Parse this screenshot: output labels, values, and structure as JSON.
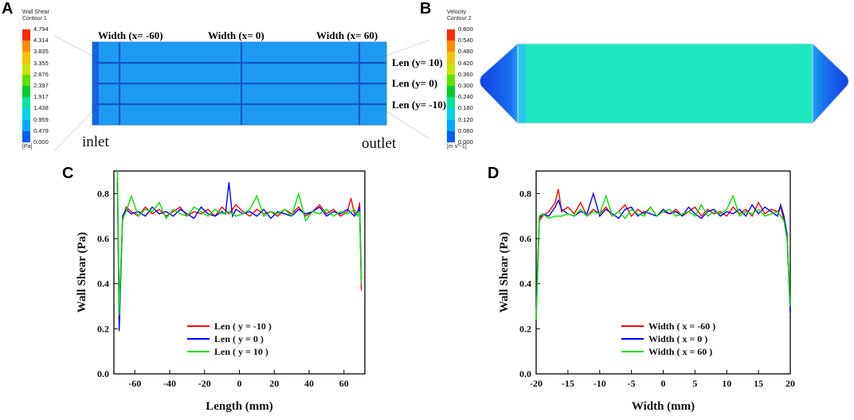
{
  "panels": {
    "A": "A",
    "B": "B",
    "C": "C",
    "D": "D"
  },
  "panel_a": {
    "legend_title": [
      "Wall Shear",
      "Contour 1"
    ],
    "legend_values": [
      "4.794",
      "4.314",
      "3.835",
      "3.355",
      "2.876",
      "2.397",
      "1.917",
      "1.438",
      "0.959",
      "0.479",
      "0.000"
    ],
    "legend_unit": "[Pa]",
    "width_labels": [
      "Width (x= -60)",
      "Width (x= 0)",
      "Width (x= 60)"
    ],
    "len_labels": [
      "Len (y= 10)",
      "Len (y= 0)",
      "Len (y= -10)"
    ],
    "inlet": "inlet",
    "outlet": "outlet"
  },
  "panel_b": {
    "legend_title": [
      "Velocity",
      "Contour 2"
    ],
    "legend_values": [
      "0.600",
      "0.540",
      "0.480",
      "0.420",
      "0.360",
      "0.300",
      "0.240",
      "0.180",
      "0.120",
      "0.060",
      "0.000"
    ],
    "legend_unit": "[m s^-1]"
  },
  "colors": {
    "legend": [
      "#ff2a00",
      "#ff8c00",
      "#f5c400",
      "#c8e600",
      "#5ce000",
      "#00cc2a",
      "#00e6a0",
      "#00d4e6",
      "#00a6ff",
      "#0060f0",
      "#0020c8"
    ],
    "channel_fill": "#1e9bf0",
    "channel_line": "#1555c8",
    "velocity_fill": "#1de8c0",
    "series_red": "#ff0000",
    "series_blue": "#0000ff",
    "series_green": "#00e000"
  },
  "chart_data": [
    {
      "type": "line",
      "title": "",
      "xlabel": "Length (mm)",
      "ylabel": "Wall Shear (Pa)",
      "xlim": [
        -72,
        72
      ],
      "ylim": [
        0,
        0.9
      ],
      "xticks": [
        -60,
        -40,
        -20,
        0,
        20,
        40,
        60
      ],
      "yticks": [
        0.0,
        0.2,
        0.4,
        0.6,
        0.8
      ],
      "legend_position": "bottom-center",
      "series": [
        {
          "name": "Len ( y = -10 )",
          "color": "red",
          "x": [
            -70,
            -69,
            -67,
            -65,
            -62,
            -58,
            -54,
            -50,
            -46,
            -42,
            -38,
            -34,
            -30,
            -26,
            -22,
            -18,
            -14,
            -10,
            -6,
            -2,
            2,
            6,
            10,
            14,
            18,
            22,
            26,
            30,
            34,
            38,
            42,
            46,
            50,
            54,
            58,
            62,
            64,
            66,
            68,
            69,
            70
          ],
          "y": [
            0.87,
            0.3,
            0.68,
            0.74,
            0.72,
            0.7,
            0.74,
            0.71,
            0.73,
            0.7,
            0.72,
            0.74,
            0.7,
            0.72,
            0.71,
            0.73,
            0.7,
            0.74,
            0.71,
            0.75,
            0.72,
            0.7,
            0.73,
            0.71,
            0.72,
            0.7,
            0.73,
            0.71,
            0.74,
            0.7,
            0.72,
            0.75,
            0.71,
            0.73,
            0.7,
            0.72,
            0.78,
            0.71,
            0.72,
            0.76,
            0.37
          ]
        },
        {
          "name": "Len ( y = 0 )",
          "color": "blue",
          "x": [
            -70,
            -69,
            -67,
            -65,
            -62,
            -58,
            -54,
            -50,
            -46,
            -42,
            -38,
            -34,
            -30,
            -26,
            -22,
            -18,
            -14,
            -10,
            -8,
            -6,
            -4,
            -2,
            2,
            6,
            10,
            14,
            18,
            22,
            26,
            30,
            34,
            38,
            42,
            46,
            50,
            54,
            58,
            62,
            66,
            68,
            69,
            70
          ],
          "y": [
            0.85,
            0.19,
            0.7,
            0.73,
            0.71,
            0.72,
            0.7,
            0.74,
            0.71,
            0.72,
            0.7,
            0.73,
            0.71,
            0.69,
            0.74,
            0.71,
            0.7,
            0.72,
            0.71,
            0.85,
            0.7,
            0.73,
            0.71,
            0.72,
            0.7,
            0.73,
            0.69,
            0.72,
            0.71,
            0.7,
            0.73,
            0.71,
            0.72,
            0.74,
            0.7,
            0.72,
            0.71,
            0.73,
            0.7,
            0.72,
            0.74,
            0.42
          ]
        },
        {
          "name": "Len ( y = 10 )",
          "color": "green",
          "x": [
            -70,
            -69,
            -67,
            -65,
            -62,
            -58,
            -54,
            -50,
            -46,
            -42,
            -38,
            -34,
            -30,
            -26,
            -22,
            -18,
            -14,
            -10,
            -6,
            -2,
            2,
            6,
            10,
            14,
            18,
            22,
            26,
            30,
            34,
            38,
            42,
            46,
            50,
            54,
            58,
            62,
            66,
            68,
            69,
            70
          ],
          "y": [
            0.9,
            0.26,
            0.69,
            0.72,
            0.79,
            0.7,
            0.73,
            0.72,
            0.76,
            0.69,
            0.73,
            0.71,
            0.7,
            0.74,
            0.72,
            0.7,
            0.73,
            0.71,
            0.72,
            0.7,
            0.71,
            0.73,
            0.79,
            0.7,
            0.72,
            0.71,
            0.73,
            0.7,
            0.8,
            0.68,
            0.72,
            0.71,
            0.73,
            0.7,
            0.72,
            0.71,
            0.73,
            0.7,
            0.72,
            0.4
          ]
        }
      ]
    },
    {
      "type": "line",
      "title": "",
      "xlabel": "Width (mm)",
      "ylabel": "Wall Shear (Pa)",
      "xlim": [
        -20,
        20
      ],
      "ylim": [
        0,
        0.9
      ],
      "xticks": [
        -20,
        -15,
        -10,
        -5,
        0,
        5,
        10,
        15,
        20
      ],
      "yticks": [
        0.0,
        0.2,
        0.4,
        0.6,
        0.8
      ],
      "legend_position": "bottom-center",
      "series": [
        {
          "name": "Width ( x = -60 )",
          "color": "red",
          "x": [
            -20,
            -19.5,
            -19,
            -18,
            -17,
            -16.5,
            -16,
            -15,
            -14,
            -13,
            -12,
            -11,
            -10,
            -9,
            -8,
            -7,
            -6,
            -5,
            -4,
            -3,
            -2,
            -1,
            0,
            1,
            2,
            3,
            4,
            5,
            6,
            7,
            8,
            9,
            10,
            11,
            12,
            13,
            14,
            15,
            16,
            17,
            18,
            18.5,
            19,
            19.5,
            20
          ],
          "y": [
            0.25,
            0.68,
            0.7,
            0.72,
            0.76,
            0.82,
            0.72,
            0.74,
            0.71,
            0.76,
            0.7,
            0.73,
            0.71,
            0.74,
            0.7,
            0.72,
            0.75,
            0.7,
            0.73,
            0.71,
            0.74,
            0.7,
            0.72,
            0.71,
            0.73,
            0.7,
            0.72,
            0.74,
            0.7,
            0.73,
            0.71,
            0.72,
            0.7,
            0.74,
            0.71,
            0.73,
            0.7,
            0.76,
            0.71,
            0.73,
            0.72,
            0.74,
            0.68,
            0.6,
            0.28
          ]
        },
        {
          "name": "Width ( x = 0 )",
          "color": "blue",
          "x": [
            -20,
            -19.5,
            -19,
            -18,
            -17,
            -16.5,
            -16,
            -15,
            -14,
            -13,
            -12,
            -11,
            -10,
            -9,
            -8,
            -7,
            -6,
            -5,
            -4,
            -3,
            -2,
            -1,
            0,
            1,
            2,
            3,
            4,
            5,
            6,
            7,
            8,
            9,
            10,
            11,
            12,
            13,
            14,
            15,
            16,
            17,
            18,
            18.5,
            19,
            19.5,
            20
          ],
          "y": [
            0.3,
            0.69,
            0.71,
            0.7,
            0.74,
            0.77,
            0.73,
            0.71,
            0.7,
            0.72,
            0.71,
            0.8,
            0.7,
            0.73,
            0.71,
            0.69,
            0.73,
            0.74,
            0.7,
            0.72,
            0.71,
            0.7,
            0.73,
            0.71,
            0.72,
            0.7,
            0.74,
            0.71,
            0.69,
            0.72,
            0.73,
            0.7,
            0.72,
            0.71,
            0.73,
            0.7,
            0.75,
            0.71,
            0.74,
            0.72,
            0.7,
            0.75,
            0.7,
            0.62,
            0.27
          ]
        },
        {
          "name": "Width ( x = 60 )",
          "color": "green",
          "x": [
            -20,
            -19.5,
            -19,
            -18,
            -17,
            -16,
            -15,
            -14,
            -13,
            -12,
            -11,
            -10,
            -9,
            -8,
            -7,
            -6,
            -5,
            -4,
            -3,
            -2,
            -1,
            0,
            1,
            2,
            3,
            4,
            5,
            6,
            7,
            8,
            9,
            10,
            11,
            12,
            13,
            14,
            15,
            16,
            17,
            18,
            18.5,
            19,
            19.5,
            20
          ],
          "y": [
            0.24,
            0.7,
            0.71,
            0.69,
            0.7,
            0.7,
            0.71,
            0.7,
            0.73,
            0.7,
            0.72,
            0.71,
            0.79,
            0.7,
            0.72,
            0.69,
            0.73,
            0.71,
            0.7,
            0.74,
            0.7,
            0.72,
            0.73,
            0.7,
            0.71,
            0.72,
            0.7,
            0.75,
            0.7,
            0.72,
            0.71,
            0.73,
            0.79,
            0.7,
            0.72,
            0.71,
            0.73,
            0.7,
            0.71,
            0.72,
            0.7,
            0.68,
            0.6,
            0.3
          ]
        }
      ]
    }
  ]
}
